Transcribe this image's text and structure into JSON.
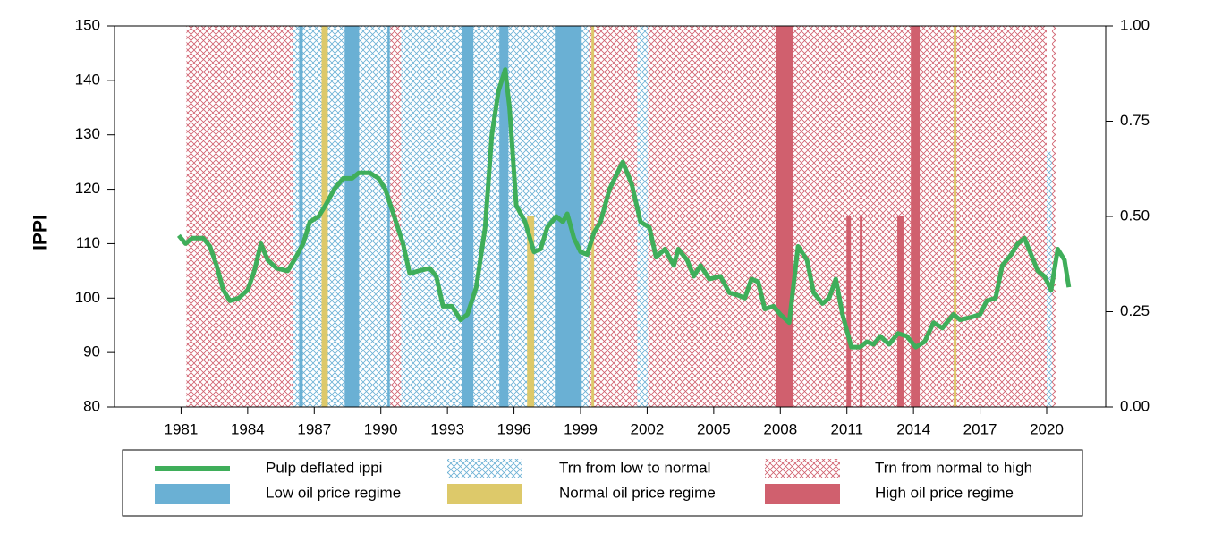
{
  "chart_data": {
    "type": "line",
    "x": [
      1980.9,
      1981.2,
      1981.5,
      1982.0,
      1982.3,
      1982.6,
      1982.9,
      1983.2,
      1983.6,
      1984.0,
      1984.3,
      1984.6,
      1984.9,
      1985.3,
      1985.8,
      1986.1,
      1986.5,
      1986.8,
      1987.2,
      1987.5,
      1987.9,
      1988.3,
      1988.7,
      1989.0,
      1989.5,
      1989.9,
      1990.2,
      1990.6,
      1991.0,
      1991.3,
      1991.7,
      1992.2,
      1992.5,
      1992.8,
      1993.2,
      1993.6,
      1993.9,
      1994.3,
      1994.7,
      1995.0,
      1995.3,
      1995.6,
      1995.8,
      1996.1,
      1996.5,
      1996.9,
      1997.2,
      1997.5,
      1997.9,
      1998.2,
      1998.4,
      1998.7,
      1999.0,
      1999.3,
      1999.6,
      1999.9,
      2000.3,
      2000.6,
      2000.9,
      2001.3,
      2001.7,
      2002.1,
      2002.4,
      2002.8,
      2003.2,
      2003.4,
      2003.8,
      2004.1,
      2004.4,
      2004.8,
      2005.3,
      2005.7,
      2006.1,
      2006.4,
      2006.7,
      2007.0,
      2007.3,
      2007.7,
      2008.0,
      2008.4,
      2008.8,
      2009.2,
      2009.5,
      2009.9,
      2010.2,
      2010.5,
      2010.8,
      2011.2,
      2011.6,
      2011.9,
      2012.2,
      2012.5,
      2012.9,
      2013.3,
      2013.7,
      2014.1,
      2014.5,
      2014.9,
      2015.3,
      2015.8,
      2016.1,
      2016.6,
      2017.0,
      2017.3,
      2017.7,
      2018.0,
      2018.4,
      2018.7,
      2019.0,
      2019.3,
      2019.6,
      2019.9,
      2020.2,
      2020.5,
      2020.8,
      2021.0
    ],
    "series": [
      {
        "name": "Pulp deflated ippi",
        "color": "#3fae5a",
        "values": [
          111.5,
          110,
          111,
          111,
          109.5,
          106,
          101.5,
          99.5,
          100,
          101.5,
          105,
          110,
          107,
          105.5,
          105,
          107,
          110,
          114,
          115,
          117,
          120,
          122,
          122,
          123,
          123,
          122,
          120,
          115,
          110,
          104.5,
          105,
          105.5,
          104,
          98.5,
          98.5,
          96,
          97,
          102,
          113,
          130,
          138,
          142,
          135,
          117,
          114,
          108.5,
          109,
          113,
          115,
          114,
          115.5,
          111,
          108.5,
          108,
          112,
          114,
          120,
          122.5,
          125,
          121,
          114,
          113,
          107.5,
          109,
          106,
          109,
          107,
          104,
          106,
          103.5,
          104,
          101,
          100.5,
          100,
          103.5,
          103,
          98,
          98.5,
          97,
          95.5,
          109.5,
          107,
          101,
          99,
          100,
          103.5,
          97,
          91,
          91,
          92,
          91.5,
          93,
          91.5,
          93.5,
          93,
          91,
          92,
          95.5,
          94.5,
          97,
          96,
          96.5,
          97,
          99.5,
          100,
          106,
          108,
          110,
          111,
          108,
          105,
          104,
          101.5,
          109,
          107,
          102
        ]
      }
    ],
    "regimes": [
      {
        "name": "Trn from low to normal",
        "color": "#6ab0d4",
        "hatch": true,
        "axis": "y2",
        "spans": [
          {
            "start": 1986.04,
            "end": 1990.43,
            "value": 1
          },
          {
            "start": 1990.91,
            "end": 1999.37,
            "value": 1
          },
          {
            "start": 2001.55,
            "end": 2002.03,
            "value": 1
          },
          {
            "start": 2020.0,
            "end": 2020.24,
            "value": 0.67
          }
        ]
      },
      {
        "name": "Trn from normal to high",
        "color": "#d0606e",
        "hatch": true,
        "axis": "y2",
        "spans": [
          {
            "start": 1981.24,
            "end": 1986.04,
            "value": 1
          },
          {
            "start": 1990.43,
            "end": 1990.91,
            "value": 1
          },
          {
            "start": 1999.37,
            "end": 2001.55,
            "value": 1
          },
          {
            "start": 2002.03,
            "end": 2020.0,
            "value": 1
          },
          {
            "start": 2020.24,
            "end": 2020.4,
            "value": 1
          }
        ]
      },
      {
        "name": "Low oil price regime",
        "color": "#6ab0d4",
        "hatch": false,
        "axis": "y2",
        "spans": [
          {
            "start": 1986.32,
            "end": 1986.48,
            "value": 1
          },
          {
            "start": 1988.37,
            "end": 1989.02,
            "value": 1
          },
          {
            "start": 1990.3,
            "end": 1990.4,
            "value": 1
          },
          {
            "start": 1993.65,
            "end": 1994.17,
            "value": 1
          },
          {
            "start": 1995.34,
            "end": 1995.75,
            "value": 1
          },
          {
            "start": 1997.84,
            "end": 1999.05,
            "value": 1
          }
        ]
      },
      {
        "name": "Normal oil price regime",
        "color": "#ddc96a",
        "hatch": false,
        "axis": "y2",
        "spans": [
          {
            "start": 1987.33,
            "end": 1987.61,
            "value": 1
          },
          {
            "start": 1996.59,
            "end": 1996.91,
            "value": 0.5
          },
          {
            "start": 1999.49,
            "end": 1999.61,
            "value": 1
          },
          {
            "start": 2015.81,
            "end": 2015.93,
            "value": 1
          }
        ]
      },
      {
        "name": "High oil price regime",
        "color": "#d0606e",
        "hatch": false,
        "axis": "y2",
        "spans": [
          {
            "start": 2007.79,
            "end": 2008.56,
            "value": 1
          },
          {
            "start": 2010.98,
            "end": 2011.18,
            "value": 0.5
          },
          {
            "start": 2011.58,
            "end": 2011.7,
            "value": 0.5
          },
          {
            "start": 2013.27,
            "end": 2013.55,
            "value": 0.5
          },
          {
            "start": 2013.88,
            "end": 2014.28,
            "value": 1
          }
        ]
      }
    ],
    "y_label": "IPPI",
    "xlim": [
      1978,
      2022.66
    ],
    "xticks": [
      1981,
      1984,
      1987,
      1990,
      1993,
      1996,
      1999,
      2002,
      2005,
      2008,
      2011,
      2014,
      2017,
      2020
    ],
    "ylim": [
      80,
      150
    ],
    "yticks": [
      80,
      90,
      100,
      110,
      120,
      130,
      140,
      150
    ],
    "y2lim": [
      0,
      1
    ],
    "y2ticks": [
      {
        "value": 0,
        "label": "0.00"
      },
      {
        "value": 0.25,
        "label": "0.25"
      },
      {
        "value": 0.5,
        "label": "0.50"
      },
      {
        "value": 0.75,
        "label": "0.75"
      },
      {
        "value": 1,
        "label": "1.00"
      }
    ],
    "legend": "bottom"
  }
}
